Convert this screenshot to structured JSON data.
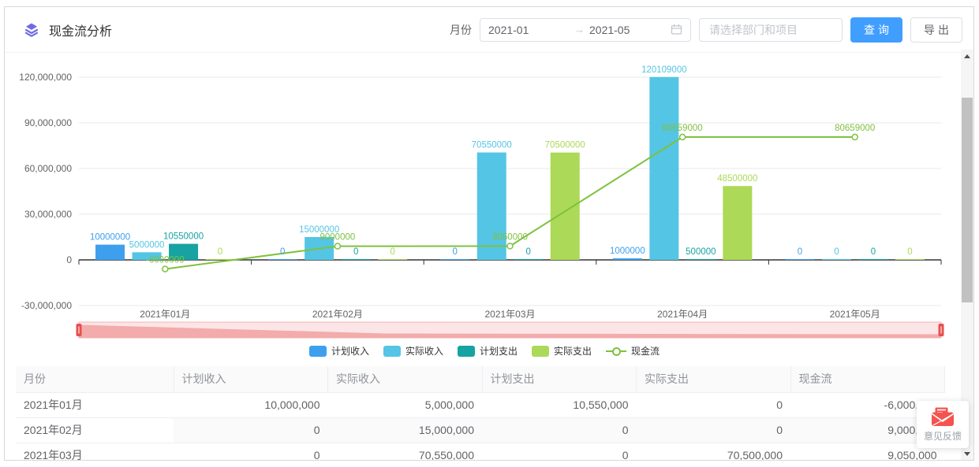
{
  "header": {
    "title": "现金流分析",
    "month_label": "月份",
    "date_start": "2021-01",
    "date_arrow": "→",
    "date_end": "2021-05",
    "dept_placeholder": "请选择部门和项目",
    "query_label": "查询",
    "export_label": "导出"
  },
  "chart_data": {
    "type": "bar+line combo",
    "categories": [
      "2021年01月",
      "2021年02月",
      "2021年03月",
      "2021年04月",
      "2021年05月"
    ],
    "series": [
      {
        "name": "计划收入",
        "type": "bar",
        "color": "#3d9fee",
        "values": [
          10000000,
          0,
          0,
          1000000,
          0
        ]
      },
      {
        "name": "实际收入",
        "type": "bar",
        "color": "#54c5e4",
        "values": [
          5000000,
          15000000,
          70550000,
          120109000,
          0
        ]
      },
      {
        "name": "计划支出",
        "type": "bar",
        "color": "#16a3a2",
        "values": [
          10550000,
          0,
          0,
          500000,
          0
        ]
      },
      {
        "name": "实际支出",
        "type": "bar",
        "color": "#acd957",
        "values": [
          0,
          0,
          70500000,
          48500000,
          0
        ]
      },
      {
        "name": "现金流",
        "type": "line",
        "color": "#7fc13f",
        "values": [
          -6000000,
          9000000,
          9050000,
          80659000,
          80659000
        ]
      }
    ],
    "ylim": [
      -30000000,
      120000000
    ],
    "ytick_step": 30000000,
    "ytick_labels": [
      "120,000,000",
      "90,000,000",
      "60,000,000",
      "30,000,000",
      "0",
      "-30,000,000"
    ],
    "grid": true,
    "legend_position": "bottom",
    "datazoom": true
  },
  "table": {
    "columns": [
      "月份",
      "计划收入",
      "实际收入",
      "计划支出",
      "实际支出",
      "现金流"
    ],
    "rows": [
      [
        "2021年01月",
        "10,000,000",
        "5,000,000",
        "10,550,000",
        "0",
        "-6,000,000"
      ],
      [
        "2021年02月",
        "0",
        "15,000,000",
        "0",
        "0",
        "9,000,000"
      ],
      [
        "2021年03月",
        "0",
        "70,550,000",
        "0",
        "70,500,000",
        "9,050,000"
      ]
    ]
  },
  "feedback": {
    "label": "意见反馈"
  },
  "colors": {
    "accent_blue": "#409eff",
    "title_icon_purple": "#6f6be8",
    "datazoom_red": "#e5504f",
    "datazoom_track": "#fce5e6",
    "datazoom_shadow": "#f3abab",
    "axis_line": "#333333",
    "grid_line": "#e9e9e9",
    "feedback_red": "#f4534f"
  }
}
